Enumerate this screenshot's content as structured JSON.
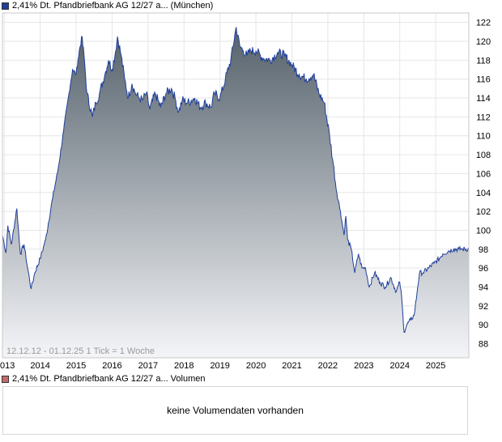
{
  "legend": {
    "price_series": "2,41% Dt. Pfandbriefbank AG 12/27 a... (München)",
    "price_color": "#1f3f9a",
    "volume_series": "2,41% Dt. Pfandbriefbank AG 12/27 a... Volumen",
    "volume_color": "#c56a6a"
  },
  "period_label": "12.12.12 - 01.12.25   1 Tick = 1 Woche",
  "volume_panel": {
    "message": "keine Volumendaten vorhanden"
  },
  "chart_data": {
    "type": "area",
    "series": [
      {
        "name": "2,41% Dt. Pfandbriefbank AG 12/27 a... (München)"
      }
    ],
    "x_tick_labels": [
      "013",
      "2014",
      "2015",
      "2016",
      "2017",
      "2018",
      "2019",
      "2020",
      "2021",
      "2022",
      "2023",
      "2024",
      "2025"
    ],
    "y_tick_labels": [
      "88",
      "90",
      "92",
      "94",
      "96",
      "98",
      "100",
      "102",
      "104",
      "106",
      "108",
      "110",
      "112",
      "114",
      "116",
      "118",
      "120",
      "122"
    ],
    "xlim": [
      2012.95,
      2025.92
    ],
    "ylim": [
      86.5,
      123
    ],
    "y_axis_side": "right",
    "grid": "vertical and horizontal",
    "line_color": "#1f3f9a",
    "fill_top_color": "#55616b",
    "fill_bottom_color": "#f4f5f8",
    "x": [
      2012.95,
      2013.05,
      2013.1,
      2013.2,
      2013.35,
      2013.45,
      2013.55,
      2013.65,
      2013.75,
      2013.85,
      2014.0,
      2014.15,
      2014.35,
      2014.5,
      2014.65,
      2014.8,
      2014.9,
      2015.0,
      2015.05,
      2015.15,
      2015.22,
      2015.3,
      2015.45,
      2015.55,
      2015.65,
      2015.8,
      2015.9,
      2016.0,
      2016.1,
      2016.15,
      2016.25,
      2016.35,
      2016.45,
      2016.55,
      2016.65,
      2016.75,
      2016.85,
      2016.95,
      2017.05,
      2017.2,
      2017.35,
      2017.5,
      2017.65,
      2017.75,
      2017.85,
      2017.95,
      2018.1,
      2018.3,
      2018.45,
      2018.6,
      2018.75,
      2018.85,
      2019.0,
      2019.15,
      2019.3,
      2019.45,
      2019.55,
      2019.65,
      2019.75,
      2019.85,
      2020.0,
      2020.2,
      2020.4,
      2020.6,
      2020.8,
      2021.0,
      2021.2,
      2021.4,
      2021.6,
      2021.75,
      2021.9,
      2022.05,
      2022.15,
      2022.25,
      2022.35,
      2022.45,
      2022.5,
      2022.55,
      2022.65,
      2022.75,
      2022.85,
      2022.95,
      2023.05,
      2023.15,
      2023.3,
      2023.45,
      2023.6,
      2023.75,
      2023.9,
      2024.0,
      2024.05,
      2024.12,
      2024.2,
      2024.3,
      2024.4,
      2024.5,
      2024.55,
      2024.65,
      2024.8,
      2024.95,
      2025.1,
      2025.2,
      2025.35,
      2025.5,
      2025.65,
      2025.75,
      2025.92
    ],
    "values": [
      99.5,
      97.6,
      100.5,
      98.5,
      102.3,
      97.5,
      98.5,
      96.0,
      93.8,
      95.5,
      97.0,
      99.0,
      103.5,
      106.5,
      110.5,
      114.5,
      117.0,
      116.5,
      118.0,
      120.5,
      118.5,
      114.5,
      112.0,
      113.5,
      114.5,
      116.5,
      118.0,
      117.0,
      119.0,
      120.5,
      118.5,
      116.0,
      114.0,
      115.5,
      114.5,
      114.0,
      113.8,
      114.5,
      112.8,
      114.5,
      113.0,
      114.5,
      115.0,
      114.0,
      112.5,
      113.8,
      113.5,
      114.0,
      113.0,
      113.5,
      113.0,
      114.5,
      114.0,
      116.0,
      118.0,
      121.5,
      119.5,
      119.0,
      118.5,
      119.0,
      119.0,
      118.2,
      118.0,
      118.8,
      118.5,
      117.5,
      116.5,
      116.0,
      116.5,
      114.5,
      113.5,
      110.0,
      107.0,
      104.0,
      102.0,
      99.5,
      101.5,
      99.0,
      98.0,
      95.5,
      97.5,
      96.0,
      96.0,
      94.0,
      95.5,
      94.5,
      94.0,
      95.0,
      93.5,
      94.5,
      93.0,
      89.2,
      90.0,
      90.5,
      91.0,
      94.0,
      95.5,
      95.5,
      96.0,
      96.5,
      97.0,
      97.5,
      97.8,
      98.0,
      98.0,
      98.0,
      98.0
    ]
  }
}
